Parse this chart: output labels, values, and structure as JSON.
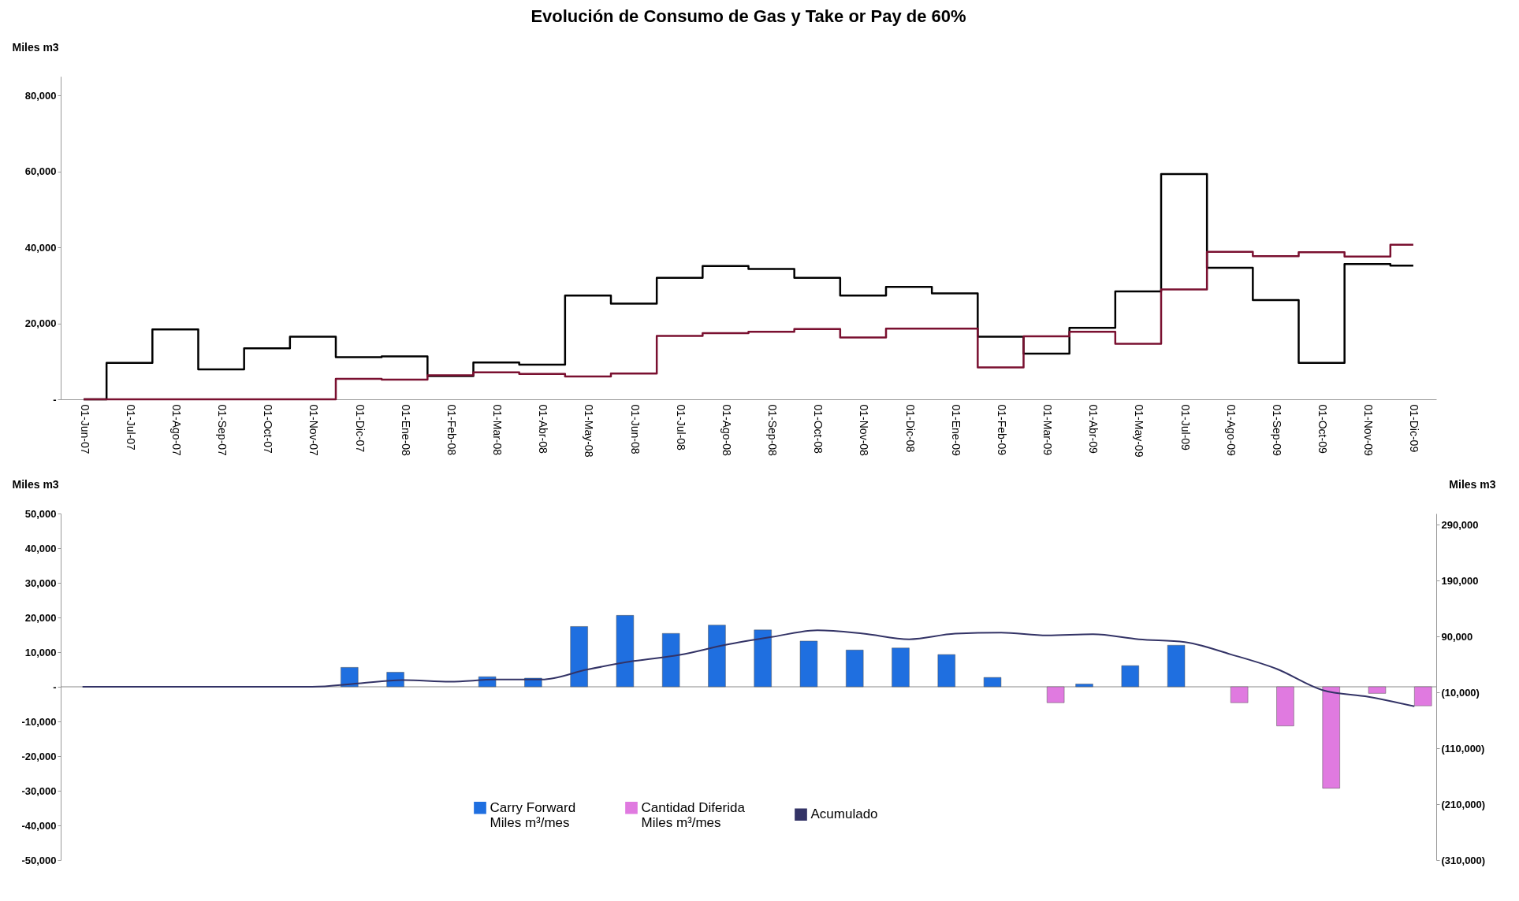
{
  "chart_data": [
    {
      "type": "step",
      "title": "Evolución de Consumo de Gas y Take or Pay de 60%",
      "ylabel": "Miles m3",
      "categories": [
        "01-Jun-07",
        "01-Jul-07",
        "01-Ago-07",
        "01-Sep-07",
        "01-Oct-07",
        "01-Nov-07",
        "01-Dic-07",
        "01-Ene-08",
        "01-Feb-08",
        "01-Mar-08",
        "01-Abr-08",
        "01-May-08",
        "01-Jun-08",
        "01-Jul-08",
        "01-Ago-08",
        "01-Sep-08",
        "01-Oct-08",
        "01-Nov-08",
        "01-Dic-08",
        "01-Ene-09",
        "01-Feb-09",
        "01-Mar-09",
        "01-Abr-09",
        "01-May-09",
        "01-Jul-09",
        "01-Ago-09",
        "01-Sep-09",
        "01-Oct-09",
        "01-Nov-09",
        "01-Dic-09"
      ],
      "series": [
        {
          "color": "#000000",
          "values": [
            0,
            9600,
            18400,
            7900,
            13400,
            16500,
            11100,
            11300,
            6100,
            9700,
            9100,
            27300,
            25200,
            32000,
            35100,
            34300,
            32000,
            27300,
            29600,
            27900,
            16500,
            12000,
            18800,
            28400,
            59300,
            34600,
            26100,
            9600,
            35600,
            35200
          ]
        },
        {
          "color": "#7a1030",
          "values": [
            0,
            0,
            0,
            0,
            0,
            0,
            5400,
            5200,
            6300,
            7100,
            6700,
            6000,
            6800,
            16700,
            17400,
            17800,
            18500,
            16300,
            18600,
            18600,
            8400,
            16600,
            17800,
            14600,
            28900,
            38800,
            37700,
            38700,
            37600,
            40700
          ]
        }
      ],
      "ylim": [
        0,
        85000
      ],
      "yticks": [
        {
          "value": 0,
          "label": "-"
        },
        {
          "value": 20000,
          "label": "20,000"
        },
        {
          "value": 40000,
          "label": "40,000"
        },
        {
          "value": 60000,
          "label": "60,000"
        },
        {
          "value": 80000,
          "label": "80,000"
        }
      ]
    },
    {
      "type": "bar",
      "ylabel": "Miles m3",
      "y2label": "Miles m3",
      "categories": [
        null,
        null,
        null,
        null,
        null,
        null,
        null,
        null,
        null,
        null,
        null,
        null,
        null,
        null,
        null,
        null,
        null,
        null,
        null,
        null,
        null,
        null,
        null,
        null,
        null,
        null,
        null,
        null,
        null,
        null
      ],
      "series": [
        {
          "name": "Carry Forward\nMiles m³/mes",
          "color": "#1f6fe0",
          "values": [
            null,
            null,
            null,
            null,
            null,
            null,
            5600,
            4200,
            null,
            2900,
            2500,
            17400,
            20600,
            15400,
            17800,
            16400,
            13200,
            10600,
            11200,
            9300,
            2700,
            null,
            800,
            6100,
            12000,
            null,
            null,
            null,
            null,
            null
          ]
        },
        {
          "name": "Cantidad Diferida\nMiles m³/mes",
          "color": "#e07ae0",
          "values": [
            null,
            null,
            null,
            null,
            null,
            null,
            null,
            null,
            null,
            null,
            null,
            null,
            null,
            null,
            null,
            null,
            null,
            null,
            null,
            null,
            null,
            -4600,
            null,
            null,
            null,
            -4600,
            -11300,
            -29300,
            -1900,
            -5500
          ]
        },
        {
          "name": "Acumulado",
          "type": "line",
          "axis": "y2",
          "color": "#333366",
          "values": [
            0,
            0,
            0,
            0,
            0,
            0,
            6000,
            12000,
            9000,
            13000,
            13000,
            31000,
            46000,
            57000,
            75000,
            89000,
            101000,
            95000,
            85000,
            95000,
            97000,
            92000,
            94000,
            85000,
            80000,
            58000,
            32000,
            -6000,
            -18000,
            -35000
          ]
        }
      ],
      "ylim": [
        -50000,
        50000
      ],
      "yticks": [
        {
          "value": -50000,
          "label": "-50,000"
        },
        {
          "value": -40000,
          "label": "-40,000"
        },
        {
          "value": -30000,
          "label": "-30,000"
        },
        {
          "value": -20000,
          "label": "-20,000"
        },
        {
          "value": -10000,
          "label": "-10,000"
        },
        {
          "value": 0,
          "label": "-"
        },
        {
          "value": 10000,
          "label": "10,000"
        },
        {
          "value": 20000,
          "label": "20,000"
        },
        {
          "value": 30000,
          "label": "30,000"
        },
        {
          "value": 40000,
          "label": "40,000"
        },
        {
          "value": 50000,
          "label": "50,000"
        }
      ],
      "y2lim": [
        -310000,
        310000
      ],
      "y2ticks": [
        {
          "value": -310000,
          "label": "(310,000)"
        },
        {
          "value": -210000,
          "label": "(210,000)"
        },
        {
          "value": -110000,
          "label": "(110,000)"
        },
        {
          "value": -10000,
          "label": "(10,000)"
        },
        {
          "value": 90000,
          "label": "90,000"
        },
        {
          "value": 190000,
          "label": "190,000"
        },
        {
          "value": 290000,
          "label": "290,000"
        }
      ],
      "legend": "bottom",
      "tick_labels": "y"
    }
  ]
}
